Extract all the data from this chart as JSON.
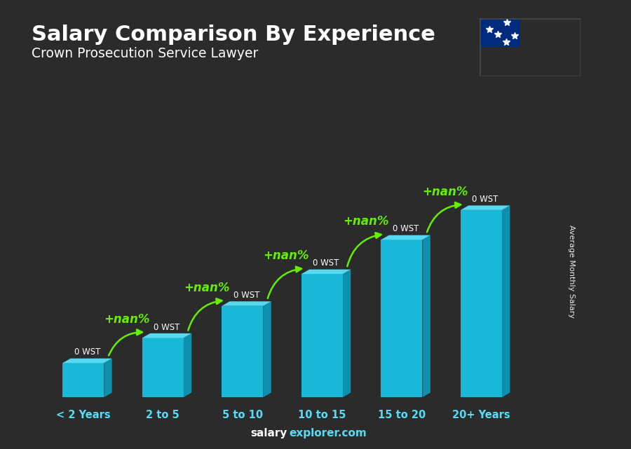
{
  "title": "Salary Comparison By Experience",
  "subtitle": "Crown Prosecution Service Lawyer",
  "ylabel": "Average Monthly Salary",
  "categories": [
    "< 2 Years",
    "2 to 5",
    "5 to 10",
    "10 to 15",
    "15 to 20",
    "20+ Years"
  ],
  "bar_label": "0 WST",
  "pct_label": "+nan%",
  "bar_color_front": "#1ab8d8",
  "bar_color_top": "#55d8f0",
  "bar_color_side": "#0d8fad",
  "bg_color": "#2b2b2b",
  "title_color": "#ffffff",
  "subtitle_color": "#ffffff",
  "label_color": "#ffffff",
  "cyan_label_color": "#55ddf5",
  "green_color": "#66ee00",
  "footer_salary_color": "#ffffff",
  "footer_explorer_color": "#55ddf5",
  "bar_heights": [
    1.5,
    2.6,
    4.0,
    5.4,
    6.9,
    8.2
  ],
  "flag_red": "#CE1126",
  "flag_blue": "#002B7F",
  "flag_white": "#FFFFFF",
  "xlim": [
    -0.65,
    5.85
  ],
  "ylim": [
    -0.3,
    11.5
  ],
  "bar_width": 0.52,
  "depth_x": 0.1,
  "depth_y": 0.2
}
